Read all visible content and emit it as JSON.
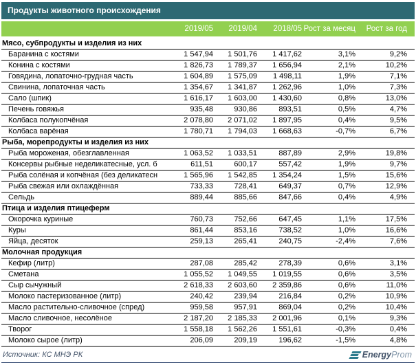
{
  "title": "Продукты животного происхождения",
  "columns": [
    "2019/05",
    "2019/04",
    "2018/05",
    "Рост за месяц",
    "Рост за год"
  ],
  "sections": [
    {
      "header": "Мясо, субпродукты и изделия из них",
      "rows": [
        {
          "name": "Баранина с костями",
          "values": [
            "1 547,94",
            "1 501,76",
            "1 417,62",
            "3,1%",
            "9,2%"
          ]
        },
        {
          "name": "Конина с костями",
          "values": [
            "1 826,73",
            "1 789,37",
            "1 656,94",
            "2,1%",
            "10,2%"
          ]
        },
        {
          "name": "Говядина, лопаточно-грудная часть",
          "values": [
            "1 604,89",
            "1 575,09",
            "1 498,11",
            "1,9%",
            "7,1%"
          ]
        },
        {
          "name": "Свинина, лопаточная часть",
          "values": [
            "1 354,67",
            "1 341,87",
            "1 262,96",
            "1,0%",
            "7,3%"
          ]
        },
        {
          "name": "Сало (шпик)",
          "values": [
            "1 616,17",
            "1 603,00",
            "1 430,60",
            "0,8%",
            "13,0%"
          ]
        },
        {
          "name": "Печень говяжья",
          "values": [
            "935,48",
            "930,86",
            "893,51",
            "0,5%",
            "4,7%"
          ]
        },
        {
          "name": "Колбаса полукопчёная",
          "values": [
            "2 078,80",
            "2 071,02",
            "1 897,95",
            "0,4%",
            "9,5%"
          ]
        },
        {
          "name": "Колбаса варёная",
          "values": [
            "1 780,71",
            "1 794,03",
            "1 668,63",
            "-0,7%",
            "6,7%"
          ]
        }
      ]
    },
    {
      "header": "Рыба, морепродукты и изделия из них",
      "rows": [
        {
          "name": "Рыба мороженая, обезглавленная",
          "values": [
            "1 063,52",
            "1 033,51",
            "887,89",
            "2,9%",
            "19,8%"
          ]
        },
        {
          "name": "Консервы рыбные неделикатесные, усл. б",
          "values": [
            "611,51",
            "600,17",
            "557,42",
            "1,9%",
            "9,7%"
          ]
        },
        {
          "name": "Рыба солёная и копчёная (без деликатесн",
          "values": [
            "1 565,96",
            "1 542,85",
            "1 354,24",
            "1,5%",
            "15,6%"
          ]
        },
        {
          "name": "Рыба свежая или охлаждённая",
          "values": [
            "733,33",
            "728,41",
            "649,37",
            "0,7%",
            "12,9%"
          ]
        },
        {
          "name": "Сельдь",
          "values": [
            "889,44",
            "885,66",
            "847,66",
            "0,4%",
            "4,9%"
          ]
        }
      ]
    },
    {
      "header": "Птица и изделия птицеферм",
      "rows": [
        {
          "name": "Окорочка куриные",
          "values": [
            "760,73",
            "752,66",
            "647,45",
            "1,1%",
            "17,5%"
          ]
        },
        {
          "name": "Куры",
          "values": [
            "861,44",
            "853,16",
            "738,52",
            "1,0%",
            "16,6%"
          ]
        },
        {
          "name": "Яйца, десяток",
          "values": [
            "259,13",
            "265,41",
            "240,75",
            "-2,4%",
            "7,6%"
          ]
        }
      ]
    },
    {
      "header": "Молочная продукция",
      "rows": [
        {
          "name": "Кефир (литр)",
          "values": [
            "287,08",
            "285,42",
            "278,39",
            "0,6%",
            "3,1%"
          ]
        },
        {
          "name": "Сметана",
          "values": [
            "1 055,52",
            "1 049,55",
            "1 019,55",
            "0,6%",
            "3,5%"
          ]
        },
        {
          "name": "Сыр сычужный",
          "values": [
            "2 618,33",
            "2 603,60",
            "2 359,86",
            "0,6%",
            "11,0%"
          ]
        },
        {
          "name": "Молоко пастеризованное (литр)",
          "values": [
            "240,42",
            "239,94",
            "216,84",
            "0,2%",
            "10,9%"
          ]
        },
        {
          "name": "Масло растительно-сливочное (спред)",
          "values": [
            "959,58",
            "957,91",
            "869,04",
            "0,2%",
            "10,4%"
          ]
        },
        {
          "name": "Масло сливочное, несолёное",
          "values": [
            "2 187,20",
            "2 185,33",
            "2 001,96",
            "0,1%",
            "9,3%"
          ]
        },
        {
          "name": "Творог",
          "values": [
            "1 558,18",
            "1 562,26",
            "1 551,61",
            "-0,3%",
            "0,4%"
          ]
        },
        {
          "name": "Молоко сырое (литр)",
          "values": [
            "206,09",
            "209,19",
            "196,62",
            "-1,5%",
            "4,8%"
          ]
        }
      ]
    }
  ],
  "footer": {
    "source": "Источник: КС МНЭ РК"
  },
  "logo": {
    "bold": "Energy",
    "light": "Prom"
  },
  "colors": {
    "title_bg": "#2d6973",
    "header_bg": "#92d050",
    "bottom_bar": "#1f3864",
    "footer_text": "#44546a",
    "logo_teal": "#2b7a8c"
  }
}
